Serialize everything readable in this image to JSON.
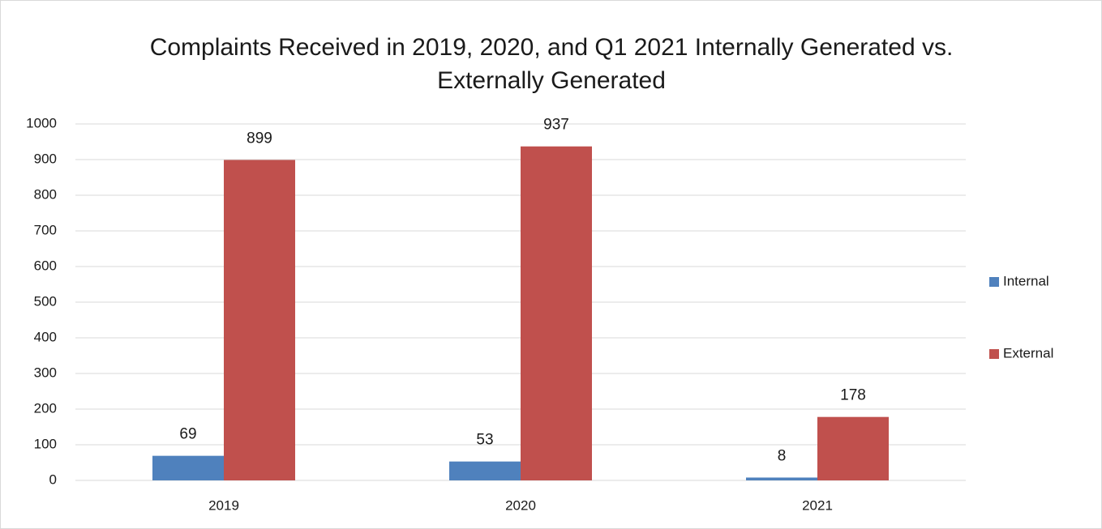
{
  "chart_data": {
    "type": "bar",
    "title": "Complaints Received in 2019, 2020, and Q1 2021 Internally Generated vs. Externally Generated",
    "categories": [
      "2019",
      "2020",
      "2021"
    ],
    "series": [
      {
        "name": "Internal",
        "color": "#4f81bd",
        "values": [
          69,
          53,
          8
        ]
      },
      {
        "name": "External",
        "color": "#c0504d",
        "values": [
          899,
          937,
          178
        ]
      }
    ],
    "ylim": [
      0,
      1000
    ],
    "yticks": [
      0,
      100,
      200,
      300,
      400,
      500,
      600,
      700,
      800,
      900,
      1000
    ],
    "grid": true,
    "legend": "right"
  }
}
